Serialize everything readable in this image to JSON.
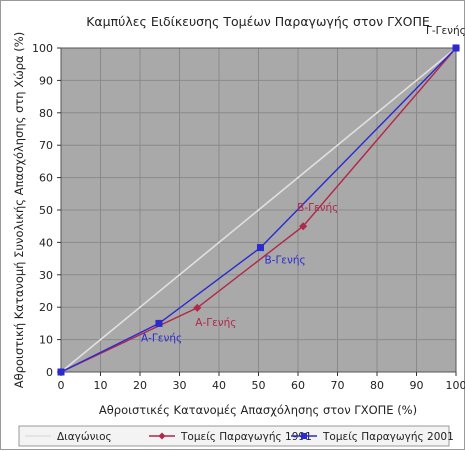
{
  "chart_data": {
    "type": "line",
    "title": "Καμπύλες Ειδίκευσης Τομέων Παραγωγής στον ΓΧΟΠΕ",
    "xlabel": "Αθροιστικές Κατανομές Απασχόλησης στον ΓΧΟΠΕ (%)",
    "ylabel": "Αθροιστική Κατανομή Συνολικής Απασχόλησης στη Χώρα (%)",
    "xlim": [
      0,
      100
    ],
    "ylim": [
      0,
      100
    ],
    "xticks": [
      "0",
      "10",
      "20",
      "30",
      "40",
      "50",
      "60",
      "70",
      "80",
      "90",
      "100"
    ],
    "yticks": [
      "0",
      "10",
      "20",
      "30",
      "40",
      "50",
      "60",
      "70",
      "80",
      "90",
      "100"
    ],
    "grid": true,
    "legend_position": "bottom",
    "series": [
      {
        "name": "Διαγώνιος",
        "color": "#e0e0e0",
        "marker": "none",
        "points": [
          [
            0,
            0
          ],
          [
            100,
            100
          ]
        ]
      },
      {
        "name": "Τομείς Παραγωγής 1991",
        "color": "#b0284a",
        "marker": "diamond",
        "points": [
          [
            0,
            0
          ],
          [
            34.5,
            19.8
          ],
          [
            61.3,
            45
          ],
          [
            100,
            100
          ]
        ]
      },
      {
        "name": "Τομείς Παραγωγής 2001",
        "color": "#2a2ad0",
        "marker": "square",
        "points": [
          [
            0,
            0
          ],
          [
            24.8,
            15
          ],
          [
            50.5,
            38.4
          ],
          [
            100,
            100
          ]
        ]
      }
    ],
    "annotations": [
      {
        "text": "Α-Γενής",
        "color": "#b0284a",
        "x": 34.5,
        "y": 19.8
      },
      {
        "text": "Β-Γενής",
        "color": "#b0284a",
        "x": 61.3,
        "y": 45
      },
      {
        "text": "Α-Γενής",
        "color": "#2a2ad0",
        "x": 24.8,
        "y": 15
      },
      {
        "text": "Β-Γενής",
        "color": "#2a2ad0",
        "x": 50.5,
        "y": 38.4
      },
      {
        "text": "Γ-Γενής",
        "color": "#222222",
        "x": 100,
        "y": 100
      }
    ],
    "plot_background": "#a9a9a9",
    "grid_color": "#8a8a8a"
  }
}
